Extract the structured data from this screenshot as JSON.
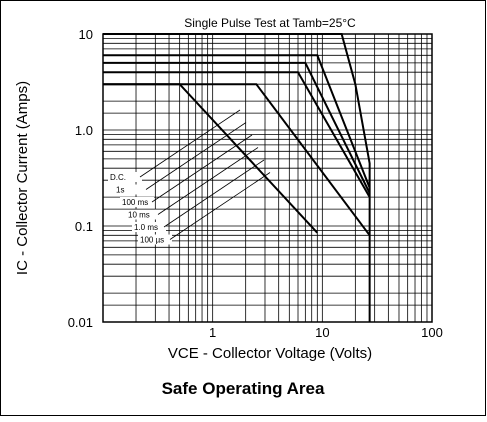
{
  "chart_data": {
    "type": "line",
    "title": "Single Pulse Test at Tamb=25°C",
    "x_label": "VCE - Collector Voltage (Volts)",
    "y_label": "IC - Collector Current (Amps)",
    "caption": "Safe Operating Area",
    "log_x": true,
    "log_y": true,
    "grid": true,
    "color": "#000000",
    "xlim": [
      0.1,
      100
    ],
    "xticks": [
      1,
      10,
      100
    ],
    "ylim": [
      0.01,
      10
    ],
    "yticks": [
      0.01,
      0.1,
      {
        "value": 1,
        "label": "1.0"
      },
      10
    ],
    "series": [
      {
        "name": "D.C.",
        "x": [
          0.1,
          0.5,
          9
        ],
        "values": [
          3,
          3,
          0.085
        ]
      },
      {
        "name": "1s",
        "x": [
          0.1,
          2.5,
          27
        ],
        "values": [
          3,
          3,
          0.08
        ]
      },
      {
        "name": "100 ms",
        "x": [
          0.1,
          6,
          27
        ],
        "values": [
          4,
          4,
          0.2
        ]
      },
      {
        "name": "10 ms",
        "x": [
          0.1,
          7,
          27
        ],
        "values": [
          5,
          5,
          0.22
        ]
      },
      {
        "name": "1.0 ms",
        "x": [
          0.1,
          9,
          27
        ],
        "values": [
          6,
          6,
          0.25
        ]
      },
      {
        "name": "100 µs",
        "x": [
          0.1,
          15,
          20,
          27,
          27
        ],
        "values": [
          10,
          10,
          3,
          0.45,
          0.01
        ]
      }
    ]
  }
}
